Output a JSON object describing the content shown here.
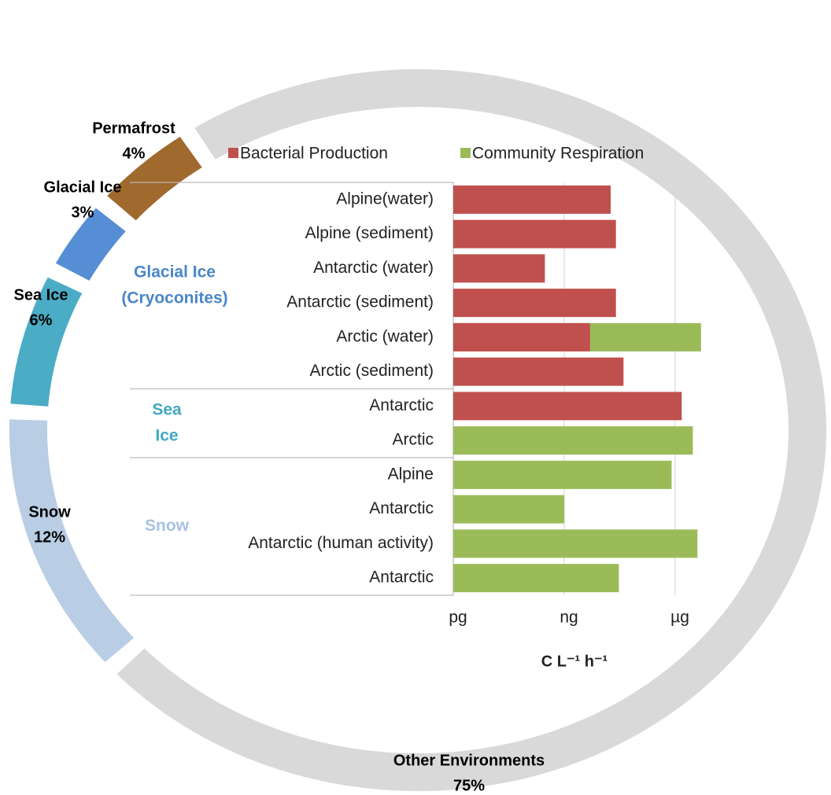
{
  "chart_data": [
    {
      "type": "pie",
      "style": "ring",
      "categories": [
        "Snow",
        "Sea Ice",
        "Glacial Ice",
        "Permafrost",
        "Other Environments"
      ],
      "values": [
        12,
        6,
        3,
        4,
        75
      ],
      "value_labels": [
        "12%",
        "6%",
        "3%",
        "4%",
        "75%"
      ],
      "colors": [
        "#b9cde5",
        "#4aacc5",
        "#558ed5",
        "#a0692e",
        "#d9d9d9"
      ]
    },
    {
      "type": "bar",
      "orientation": "horizontal",
      "xscale": "log",
      "grid": true,
      "legend": "top",
      "groups": [
        {
          "name": [
            "Glacial Ice",
            "(Cryoconites)"
          ],
          "color": "#4a86c8",
          "categories": [
            "Alpine(water)",
            "Alpine (sediment)",
            "Antarctic (water)",
            "Antarctic (sediment)",
            "Arctic (water)",
            "Arctic (sediment)"
          ]
        },
        {
          "name": [
            "Sea",
            "Ice"
          ],
          "color": "#40a8c0",
          "categories": [
            "Antarctic",
            "Arctic"
          ]
        },
        {
          "name": [
            "Snow"
          ],
          "color": "#a7c2e3",
          "categories": [
            "Alpine",
            "Antarctic",
            "Antarctic (human activity)",
            "Antarctic"
          ]
        }
      ],
      "series": [
        {
          "name": "Bacterial Production",
          "color": "#c0504d",
          "values": [
            18000,
            25000,
            300,
            25000,
            5000,
            40000,
            1500000,
            null,
            null,
            null,
            null,
            null
          ]
        },
        {
          "name": "Community Respiration",
          "color": "#9bbb59",
          "values": [
            null,
            null,
            null,
            null,
            5000000,
            null,
            null,
            3000000,
            800000,
            1000,
            4000000,
            30000
          ]
        }
      ],
      "xlabel": "C L⁻¹ h⁻¹",
      "xlim": [
        1,
        10000000
      ],
      "xticks": [
        {
          "value": 1,
          "label": "pg"
        },
        {
          "value": 1000,
          "label": "ng"
        },
        {
          "value": 1000000,
          "label": "µg"
        }
      ]
    }
  ]
}
